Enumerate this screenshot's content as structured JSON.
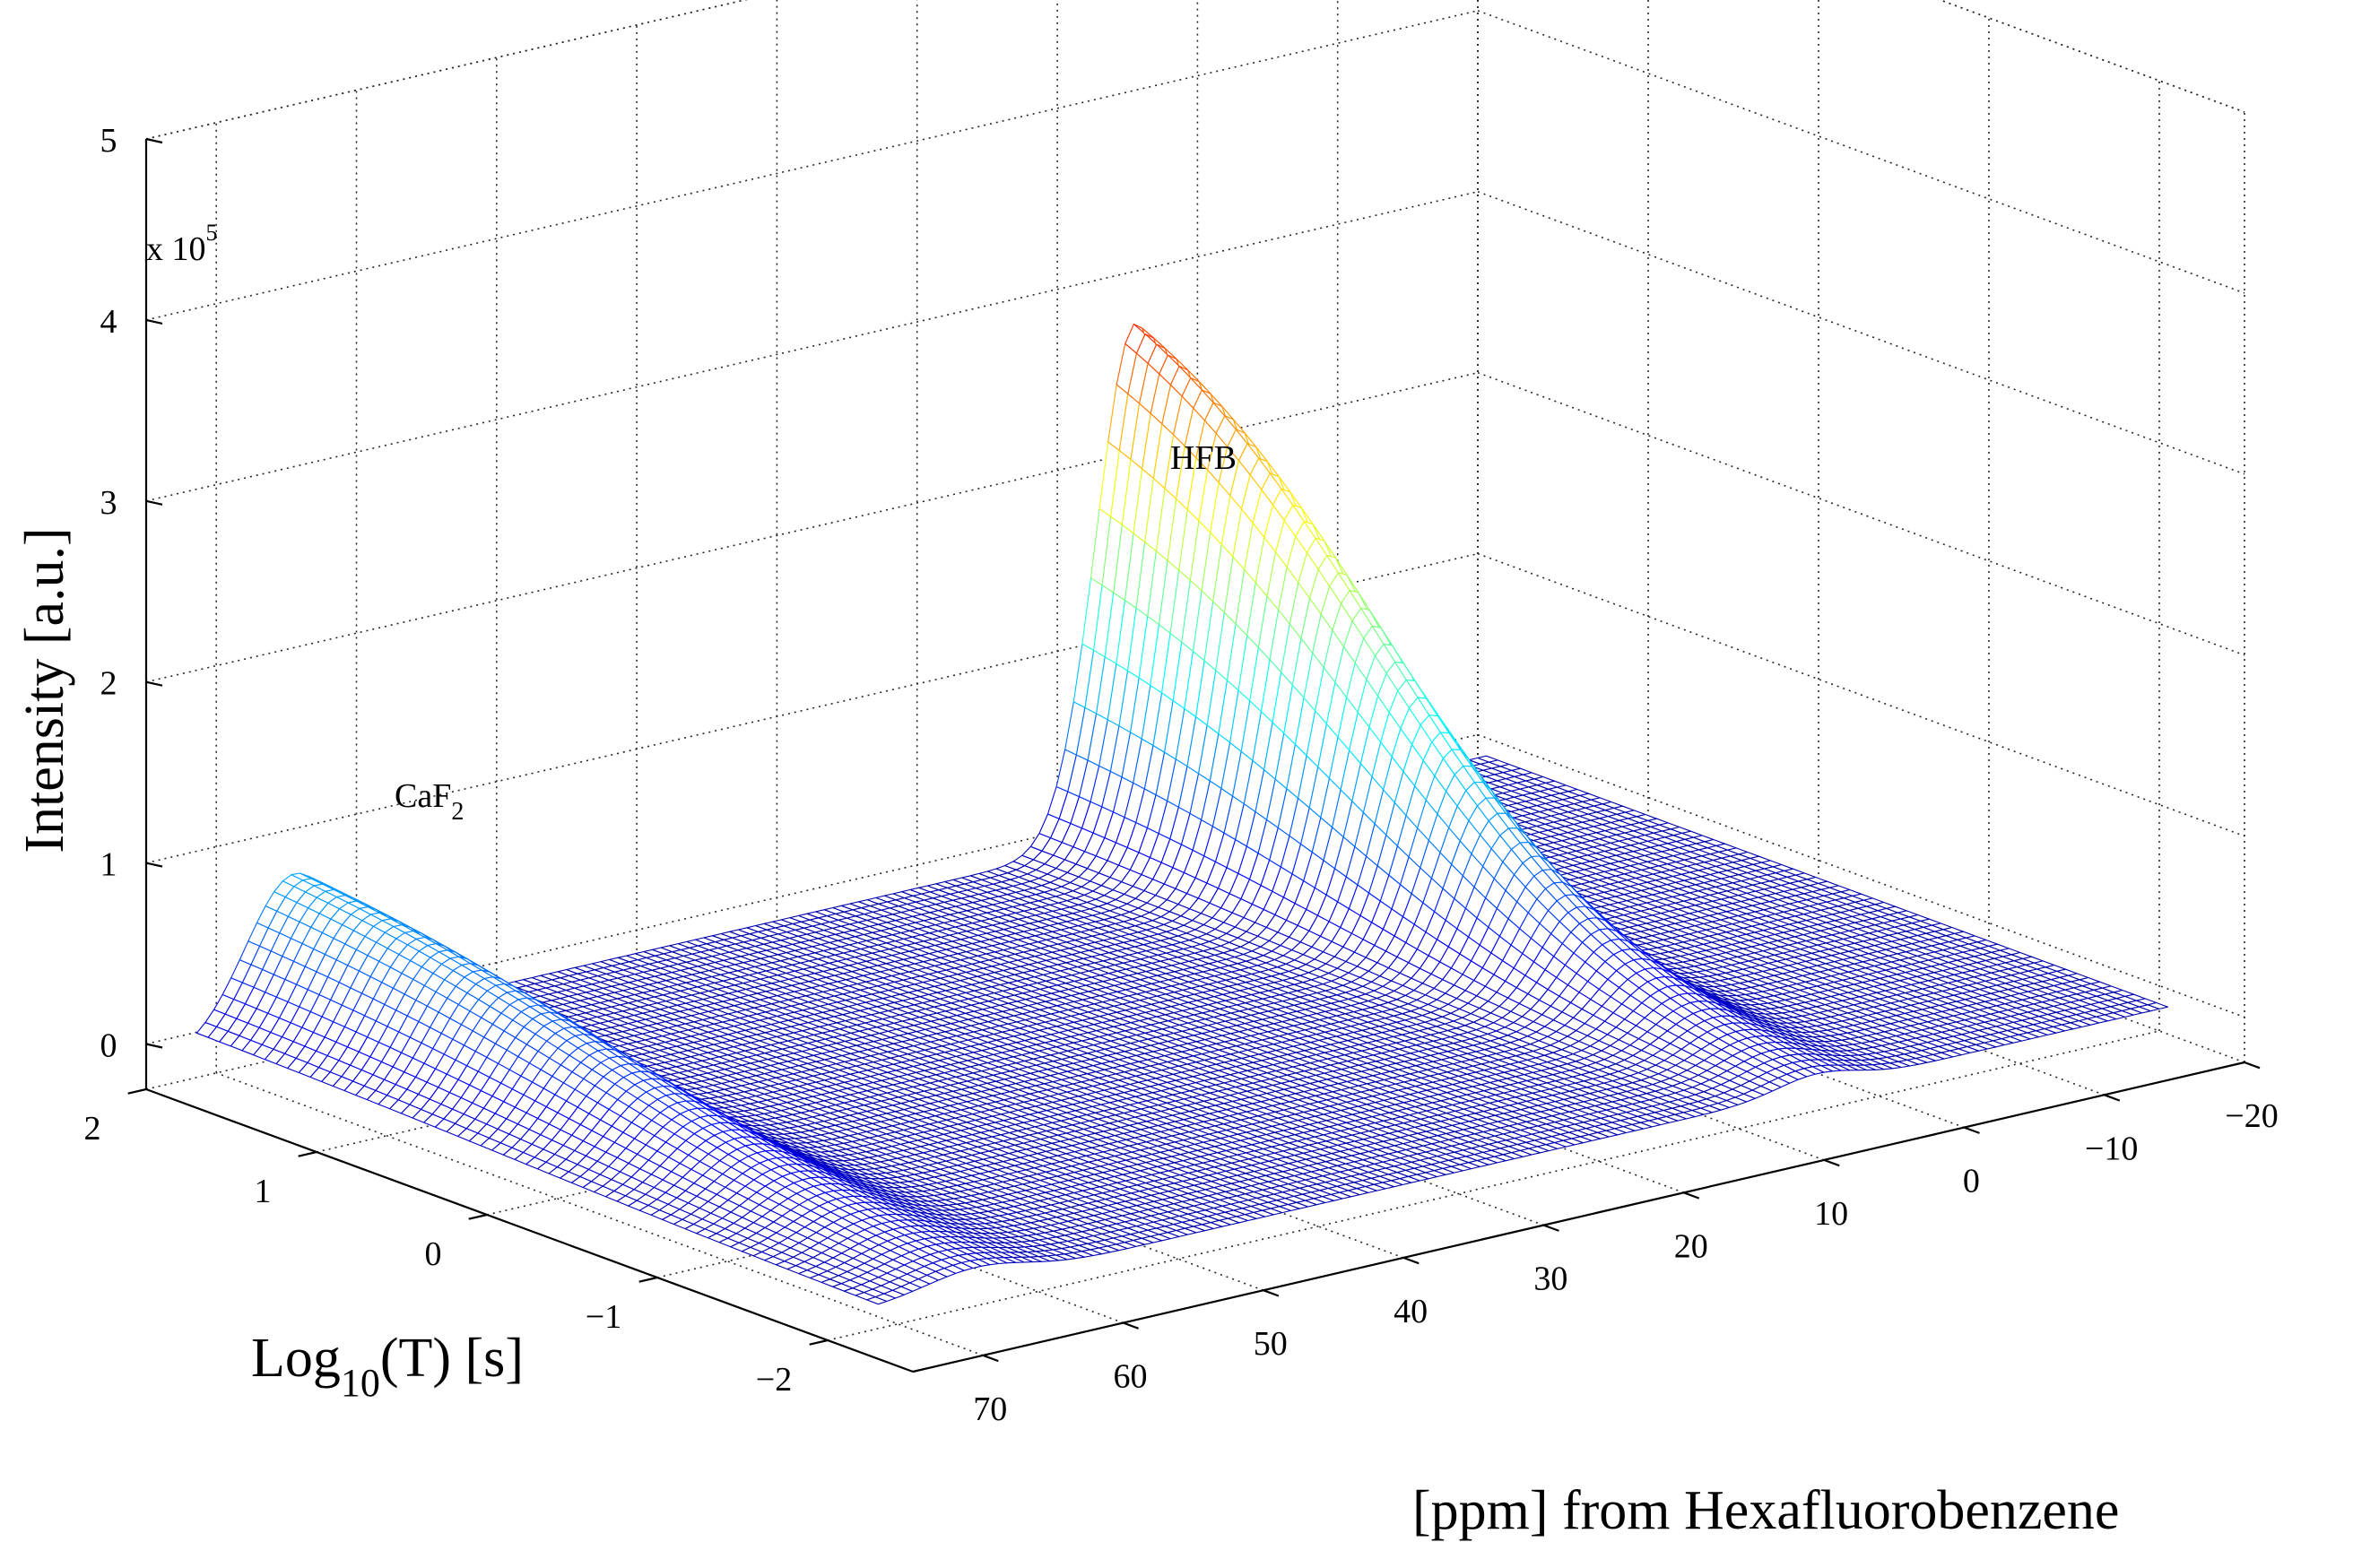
{
  "chart_data": {
    "type": "surface",
    "title": "",
    "x_axis": {
      "label": "[ppm] from Hexafluorobenzene",
      "range": [
        -20,
        75
      ],
      "reversed": true,
      "ticks": [
        70,
        60,
        50,
        40,
        30,
        20,
        10,
        0,
        -10,
        -20
      ],
      "tick_labels": [
        "70",
        "60",
        "50",
        "40",
        "30",
        "20",
        "10",
        "0",
        "−10",
        "−20"
      ]
    },
    "y_axis": {
      "label_main": "Log",
      "label_sub": "10",
      "label_rest": "(T) [s]",
      "range": [
        -2.5,
        2
      ],
      "ticks": [
        2,
        1,
        0,
        -1,
        -2
      ],
      "tick_labels": [
        "2",
        "1",
        "0",
        "−1",
        "−2"
      ]
    },
    "z_axis": {
      "label": "Intensity [a.u.]",
      "range": [
        -0.25,
        5
      ],
      "ticks": [
        0,
        1,
        2,
        3,
        4,
        5
      ],
      "tick_labels": [
        "0",
        "1",
        "2",
        "3",
        "4",
        "5"
      ],
      "multiplier_prefix": "x 10",
      "multiplier_exp": "5"
    },
    "peaks": [
      {
        "label_main": "CaF",
        "label_sub": "2",
        "ppm": 65,
        "amplitude": 0.98,
        "width_ppm": 5,
        "decay_center_log10T": 0.0,
        "decay_width": 0.9
      },
      {
        "label_main": "HFB",
        "label_sub": "",
        "ppm": 5,
        "amplitude": 3.2,
        "width_ppm": 4,
        "decay_center_log10T": 0.5,
        "decay_width": 0.7
      }
    ],
    "baseline": -0.1,
    "colormap": "jet",
    "grid": true
  }
}
